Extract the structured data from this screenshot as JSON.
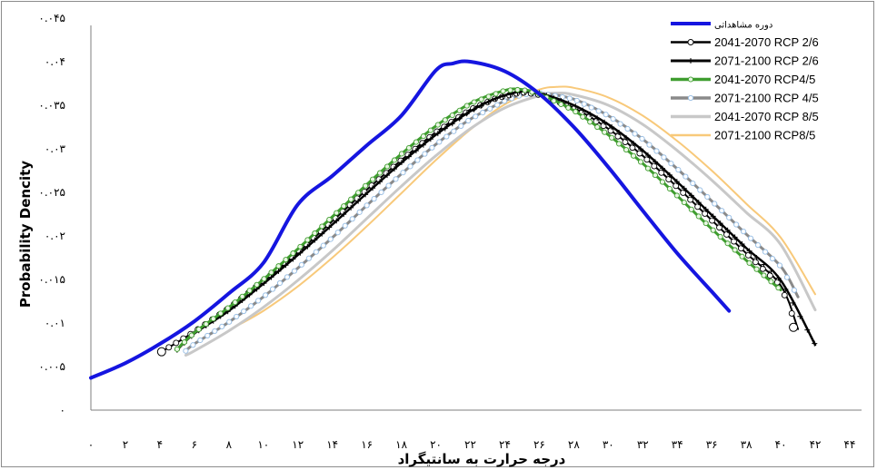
{
  "chart_data": {
    "type": "line",
    "title": "",
    "xlabel": "درجه حرارت به سانتیگراد",
    "ylabel": "Probability Dencity",
    "xlim": [
      0,
      44
    ],
    "ylim": [
      0,
      0.045
    ],
    "x_ticks": [
      0,
      2,
      4,
      6,
      8,
      10,
      12,
      14,
      16,
      18,
      20,
      22,
      24,
      26,
      28,
      30,
      32,
      34,
      36,
      38,
      40,
      42,
      44
    ],
    "x_tick_labels": [
      "۰",
      "۲",
      "۴",
      "۶",
      "۸",
      "۱۰",
      "۱۲",
      "۱۴",
      "۱۶",
      "۱۸",
      "۲۰",
      "۲۲",
      "۲۴",
      "۲۶",
      "۲۸",
      "۳۰",
      "۳۲",
      "۳۴",
      "۳۶",
      "۳۸",
      "۴۰",
      "۴۲",
      "۴۴"
    ],
    "y_ticks": [
      0,
      0.005,
      0.01,
      0.015,
      0.02,
      0.025,
      0.03,
      0.035,
      0.04,
      0.045
    ],
    "y_tick_labels": [
      "۰",
      "۰.۰۰۵",
      "۰.۰۱",
      "۰.۰۱۵",
      "۰.۰۲",
      "۰.۰۲۵",
      "۰.۰۳",
      "۰.۰۳۵",
      "۰.۰۴",
      "۰.۰۴۵"
    ],
    "grid": false,
    "legend_position": "top-right",
    "series": [
      {
        "name": "دوره مشاهداتی",
        "color": "#1515e0",
        "marker": "none",
        "width": 4,
        "x": [
          0,
          2,
          4,
          6,
          8,
          10,
          12,
          14,
          16,
          18,
          20,
          21,
          22,
          24,
          26,
          28,
          30,
          32,
          34,
          36,
          37
        ],
        "y": [
          0.0037,
          0.0054,
          0.0076,
          0.0102,
          0.0134,
          0.0169,
          0.0236,
          0.0269,
          0.0304,
          0.0338,
          0.039,
          0.0398,
          0.04,
          0.0389,
          0.0363,
          0.0325,
          0.0279,
          0.0229,
          0.018,
          0.0136,
          0.0114
        ]
      },
      {
        "name": "2041-2070 RCP 2/6",
        "color": "#000000",
        "marker": "open-circle",
        "width": 2,
        "x": [
          4.1,
          6,
          8,
          10,
          12,
          14,
          16,
          18,
          20,
          22,
          23.5,
          25,
          26,
          28,
          30,
          32,
          34,
          36,
          38,
          40,
          41
        ],
        "y": [
          0.0067,
          0.009,
          0.0117,
          0.0148,
          0.0181,
          0.0217,
          0.0253,
          0.0287,
          0.0319,
          0.0345,
          0.0358,
          0.0365,
          0.0362,
          0.0347,
          0.0323,
          0.0292,
          0.0256,
          0.0218,
          0.018,
          0.0143,
          0.0093
        ]
      },
      {
        "name": "2071-2100 RCP 2/6",
        "color": "#000000",
        "marker": "plus",
        "width": 2.5,
        "x": [
          5,
          6,
          8,
          10,
          12,
          14,
          16,
          18,
          20,
          22,
          23.5,
          25,
          26,
          28,
          30,
          32,
          34,
          36,
          38,
          40,
          42
        ],
        "y": [
          0.0069,
          0.0088,
          0.0114,
          0.0145,
          0.0178,
          0.0213,
          0.0249,
          0.0284,
          0.0316,
          0.0343,
          0.0358,
          0.0366,
          0.0364,
          0.035,
          0.0328,
          0.0298,
          0.0262,
          0.0224,
          0.0186,
          0.0149,
          0.0075
        ]
      },
      {
        "name": "2041-2070 RCP4/5",
        "color": "#3f9d2f",
        "marker": "open-circle-green",
        "width": 3,
        "x": [
          5,
          6,
          8,
          10,
          12,
          14,
          16,
          18,
          20,
          22,
          24,
          25,
          26,
          28,
          30,
          32,
          34,
          36,
          38,
          40
        ],
        "y": [
          0.007,
          0.0089,
          0.0118,
          0.015,
          0.0185,
          0.0222,
          0.0259,
          0.0294,
          0.0326,
          0.0352,
          0.0367,
          0.0368,
          0.0363,
          0.0344,
          0.0316,
          0.0283,
          0.0246,
          0.0208,
          0.0172,
          0.0138
        ]
      },
      {
        "name": "2071-2100 RCP 4/5",
        "color": "#8a8a8a",
        "marker": "open-circle-blue",
        "width": 3,
        "x": [
          5.5,
          6,
          8,
          10,
          12,
          14,
          16,
          18,
          20,
          22,
          24,
          25,
          26,
          28,
          30,
          32,
          34,
          36,
          38,
          40,
          41
        ],
        "y": [
          0.0068,
          0.0076,
          0.0101,
          0.013,
          0.0163,
          0.0198,
          0.0235,
          0.0271,
          0.0305,
          0.0334,
          0.0355,
          0.0362,
          0.0364,
          0.0357,
          0.0338,
          0.0311,
          0.0277,
          0.024,
          0.0202,
          0.0165,
          0.013
        ]
      },
      {
        "name": "2041-2070 RCP 8/5",
        "color": "#c8c8c8",
        "marker": "none",
        "width": 3,
        "x": [
          5.5,
          6,
          8,
          10,
          12,
          14,
          16,
          18,
          20,
          22,
          24,
          26,
          27,
          28,
          30,
          32,
          34,
          36,
          38,
          40,
          42
        ],
        "y": [
          0.0063,
          0.0068,
          0.0091,
          0.0118,
          0.0149,
          0.0183,
          0.022,
          0.0257,
          0.0292,
          0.0323,
          0.0347,
          0.0361,
          0.0364,
          0.0362,
          0.035,
          0.0328,
          0.0298,
          0.0264,
          0.0227,
          0.019,
          0.0115
        ]
      },
      {
        "name": "2071-2100 RCP8/5",
        "color": "#f8c97a",
        "marker": "none",
        "width": 2,
        "x": [
          8.3,
          10,
          12,
          14,
          16,
          18,
          20,
          22,
          24,
          26,
          27,
          28,
          30,
          32,
          34,
          36,
          38,
          40,
          42
        ],
        "y": [
          0.0095,
          0.0114,
          0.0142,
          0.0175,
          0.0211,
          0.0249,
          0.0287,
          0.0322,
          0.0351,
          0.0368,
          0.0371,
          0.037,
          0.0359,
          0.0338,
          0.0309,
          0.0275,
          0.0237,
          0.0198,
          0.0133
        ]
      }
    ]
  }
}
